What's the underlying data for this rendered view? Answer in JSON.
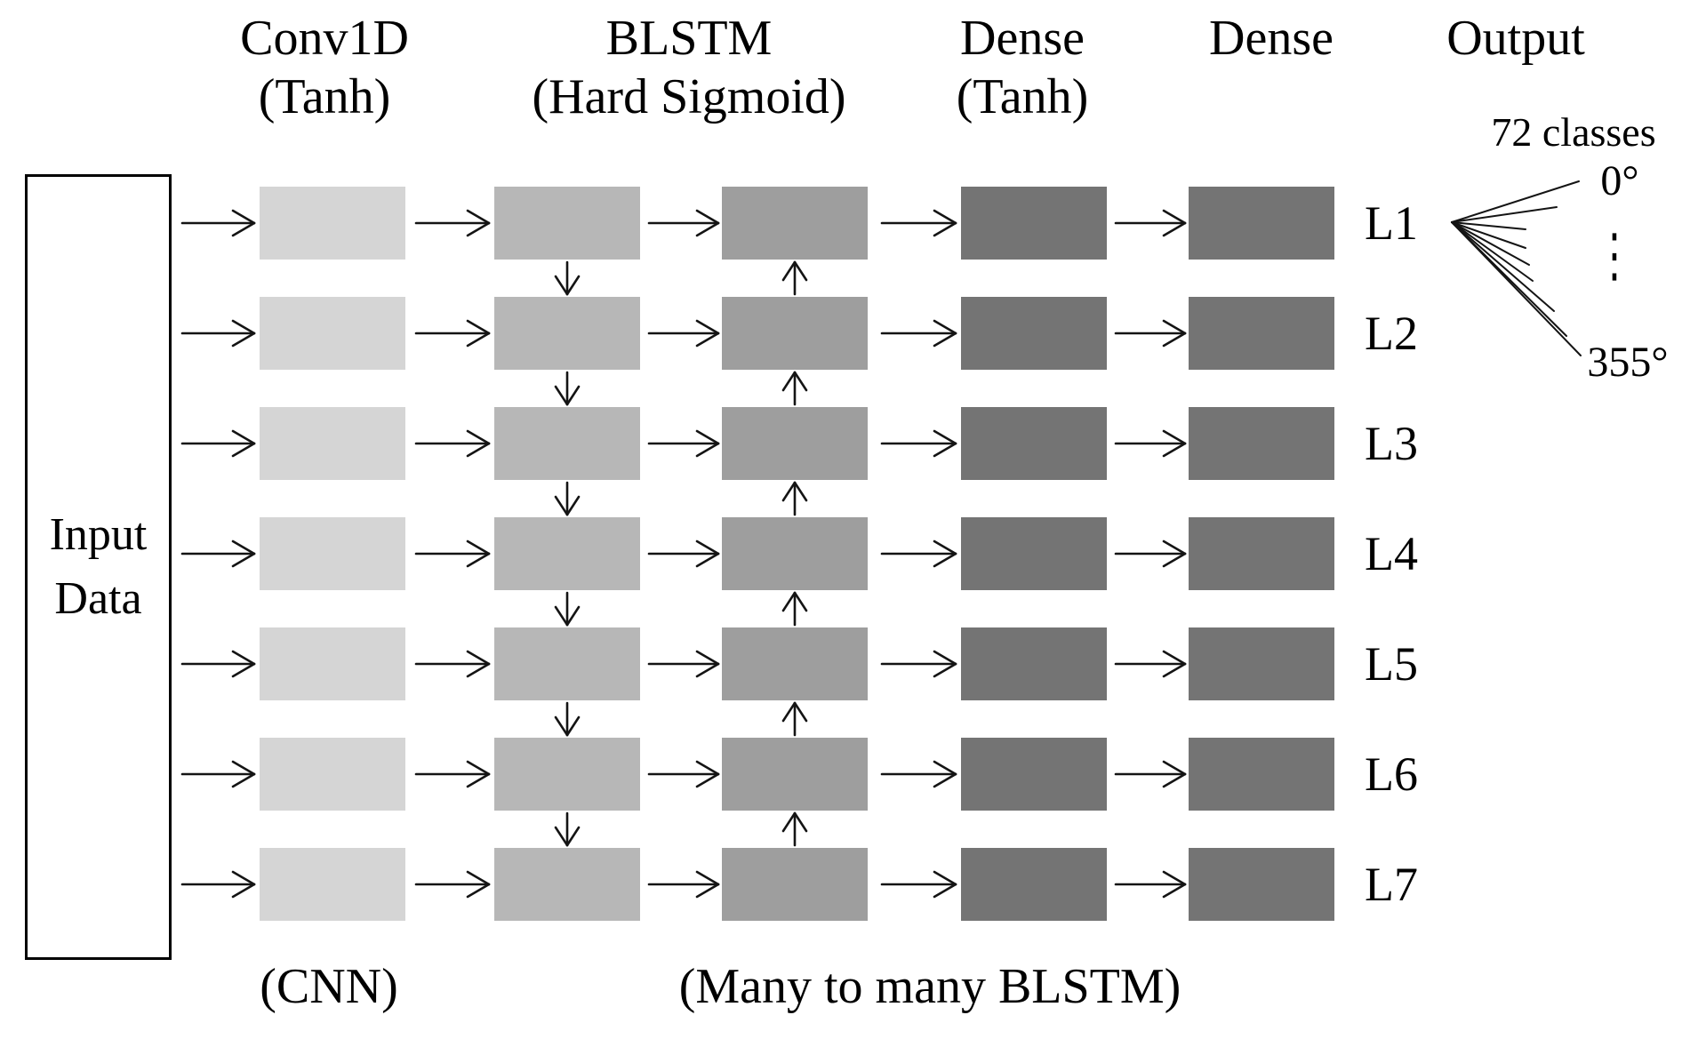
{
  "diagram": {
    "input_box": {
      "line1": "Input",
      "line2": "Data"
    },
    "column_headers": [
      {
        "line1": "Conv1D",
        "line2": "(Tanh)"
      },
      {
        "line1": "BLSTM",
        "line2": "(Hard Sigmoid)"
      },
      {
        "line1": "Dense",
        "line2": "(Tanh)"
      },
      {
        "line1": "Dense",
        "line2": ""
      },
      {
        "line1": "Output",
        "line2": ""
      }
    ],
    "row_labels": [
      "L1",
      "L2",
      "L3",
      "L4",
      "L5",
      "L6",
      "L7"
    ],
    "bottom_labels": [
      {
        "text": "(CNN)"
      },
      {
        "text": "(Many to many BLSTM)"
      }
    ],
    "output_annotation": {
      "classes_label": "72 classes",
      "first_class": "0°",
      "ellipsis": "⋮",
      "last_class": "355°"
    },
    "colors": {
      "conv_box": "#d5d5d5",
      "blstm_forward_box": "#b7b7b7",
      "blstm_backward_box": "#9e9e9e",
      "dense_box": "#747474",
      "arrow": "#141414",
      "text": "#000000"
    }
  }
}
